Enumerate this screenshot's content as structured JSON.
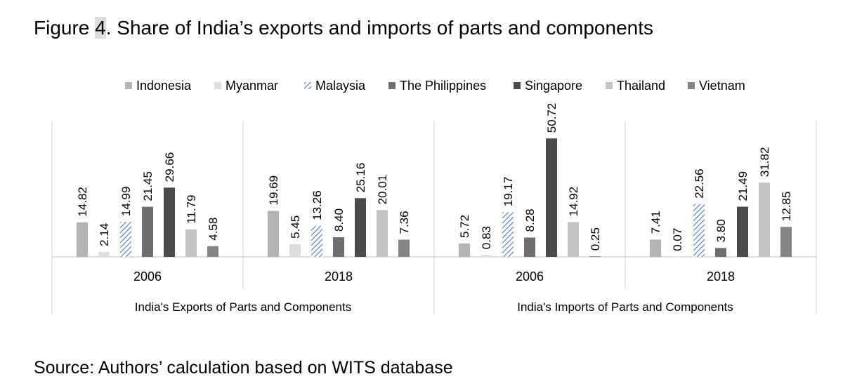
{
  "figure": {
    "label": "Figure",
    "number": "4",
    "title_rest": ". Share of India’s exports and imports of parts and components",
    "source": "Source: Authors’ calculation based on WITS database"
  },
  "chart_data": {
    "type": "bar",
    "title": "",
    "xlabel": "",
    "ylabel": "",
    "ylim": [
      0,
      55
    ],
    "grid": false,
    "legend_position": "top",
    "groups": [
      {
        "label": "India's Exports of Parts and Components",
        "categories": [
          "2006",
          "2018"
        ]
      },
      {
        "label": "India's Imports of Parts and Components",
        "categories": [
          "2006",
          "2018"
        ]
      }
    ],
    "categories": [
      "2006",
      "2018",
      "2006",
      "2018"
    ],
    "series": [
      {
        "name": "Indonesia",
        "color": "#b3b3b3",
        "pattern": "solid",
        "values": [
          14.82,
          19.69,
          5.72,
          7.41
        ],
        "labels": [
          "14.82",
          "19.69",
          "5.72",
          "7.41"
        ]
      },
      {
        "name": "Myanmar",
        "color": "#dddddd",
        "pattern": "solid",
        "values": [
          2.14,
          5.45,
          0.83,
          0.07
        ],
        "labels": [
          "2.14",
          "5.45",
          "0.83",
          "0.07"
        ]
      },
      {
        "name": "Malaysia",
        "color": "#3a6fd8",
        "pattern": "hatch",
        "values": [
          14.99,
          13.26,
          19.17,
          22.56
        ],
        "labels": [
          "14.99",
          "13.26",
          "19.17",
          "22.56"
        ]
      },
      {
        "name": "The Philippines",
        "color": "#6e6e6e",
        "pattern": "solid",
        "values": [
          21.45,
          8.4,
          8.28,
          3.8
        ],
        "labels": [
          "21.45",
          "8.40",
          "8.28",
          "3.80"
        ]
      },
      {
        "name": "Singapore",
        "color": "#4a4a4a",
        "pattern": "solid",
        "values": [
          29.66,
          25.16,
          50.72,
          21.49
        ],
        "labels": [
          "29.66",
          "25.16",
          "50.72",
          "21.49"
        ]
      },
      {
        "name": "Thailand",
        "color": "#c4c4c4",
        "pattern": "solid",
        "values": [
          11.79,
          20.01,
          14.92,
          31.82
        ],
        "labels": [
          "11.79",
          "20.01",
          "14.92",
          "31.82"
        ]
      },
      {
        "name": "Vietnam",
        "color": "#848484",
        "pattern": "solid",
        "values": [
          4.58,
          7.36,
          0.25,
          12.85
        ],
        "labels": [
          "4.58",
          "7.36",
          "0.25",
          "12.85"
        ]
      }
    ]
  }
}
